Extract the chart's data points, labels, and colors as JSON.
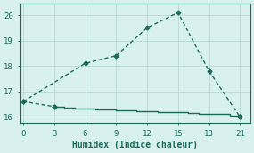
{
  "xlabel": "Humidex (Indice chaleur)",
  "bg_color": "#d8f0f0",
  "grid_color": "#b8d8d5",
  "line_color": "#1a6b5a",
  "line1_x": [
    0,
    6,
    9,
    12,
    15,
    18,
    21
  ],
  "line1_y": [
    16.6,
    18.1,
    18.4,
    19.5,
    20.1,
    17.8,
    16.0
  ],
  "line2_x": [
    3,
    4,
    5,
    6,
    7,
    8,
    9,
    10,
    11,
    12,
    13,
    14,
    15,
    16,
    17,
    18,
    19,
    20,
    21
  ],
  "line2_y": [
    16.4,
    16.37,
    16.34,
    16.32,
    16.3,
    16.28,
    16.27,
    16.25,
    16.23,
    16.22,
    16.2,
    16.18,
    16.17,
    16.15,
    16.13,
    16.12,
    16.1,
    16.05,
    16.0
  ],
  "line3_x": [
    0,
    3
  ],
  "line3_y": [
    16.6,
    16.4
  ],
  "xlim": [
    -0.3,
    22.0
  ],
  "ylim": [
    15.75,
    20.45
  ],
  "xticks": [
    0,
    3,
    6,
    9,
    12,
    15,
    18,
    21
  ],
  "yticks": [
    16,
    17,
    18,
    19,
    20
  ],
  "marker_size": 2.5,
  "linewidth": 1.0
}
